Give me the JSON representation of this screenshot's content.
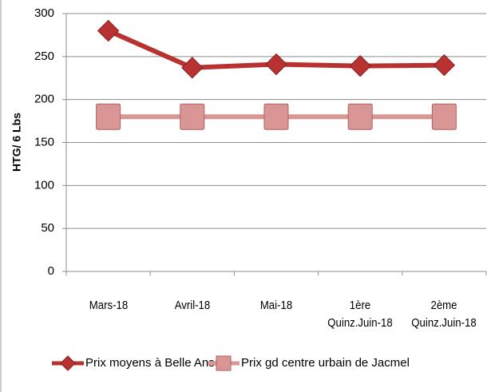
{
  "chart_data": {
    "type": "line",
    "ylabel": "HTG/ 6 Lbs",
    "categories": [
      "Mars-18",
      "Avril-18",
      "Mai-18",
      "1ère\nQuinz.Juin-18",
      "2ème\nQuinz.Juin-18"
    ],
    "series": [
      {
        "name": "Prix moyens à Belle Anse",
        "color": "#b83232",
        "marker": "diamond",
        "values": [
          280,
          237,
          241,
          239,
          240
        ]
      },
      {
        "name": "Prix gd centre urbain de Jacmel",
        "color": "#d99694",
        "marker": "square",
        "values": [
          180,
          180,
          180,
          180,
          180
        ]
      }
    ],
    "ylim": [
      0,
      300
    ],
    "yticks": [
      0,
      50,
      100,
      150,
      200,
      250,
      300
    ],
    "grid": true,
    "legend": "bottom"
  }
}
